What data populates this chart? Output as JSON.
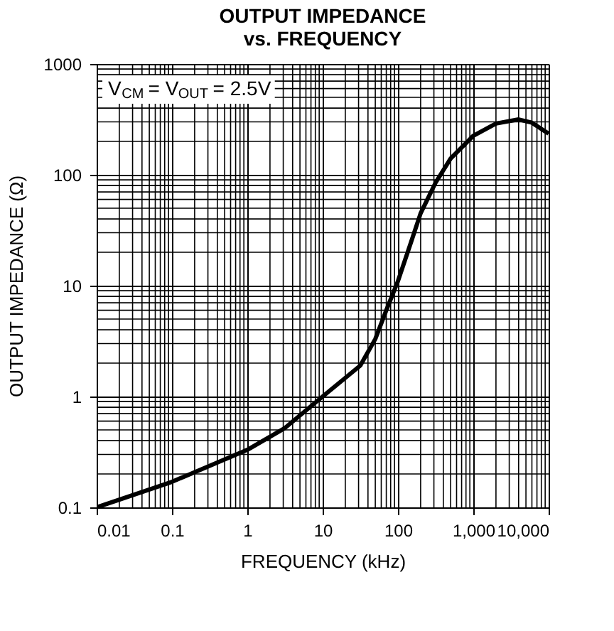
{
  "chart_data": {
    "type": "line",
    "title": "OUTPUT IMPEDANCE\nvs. FREQUENCY",
    "xlabel": "FREQUENCY (kHz)",
    "ylabel": "OUTPUT IMPEDANCE (Ω)",
    "annotations": [
      "V$_{CM}$ = V$_{OUT}$ = 2.5V"
    ],
    "log": "xy",
    "grid": true,
    "line_style": "solid",
    "xlim": [
      0.01,
      10000
    ],
    "ylim": [
      0.1,
      1000
    ],
    "xticks": [
      0.01,
      0.1,
      1,
      10,
      100,
      {
        "value": 1000,
        "label": "1,000"
      },
      {
        "value": 10000,
        "label": "10,000"
      }
    ],
    "yticks": [
      0.1,
      1,
      10,
      100,
      1000
    ],
    "series": [
      {
        "color": "#000000",
        "x": [
          0.01,
          0.1,
          1,
          3.16,
          10,
          31.6,
          50,
          70,
          100,
          150,
          200,
          316,
          500,
          1000,
          2000,
          4000,
          6000,
          10000
        ],
        "values": [
          0.1,
          0.17,
          0.33,
          0.52,
          1.0,
          1.9,
          3.3,
          6,
          11,
          25,
          45,
          85,
          140,
          225,
          290,
          316,
          295,
          235
        ]
      }
    ]
  }
}
